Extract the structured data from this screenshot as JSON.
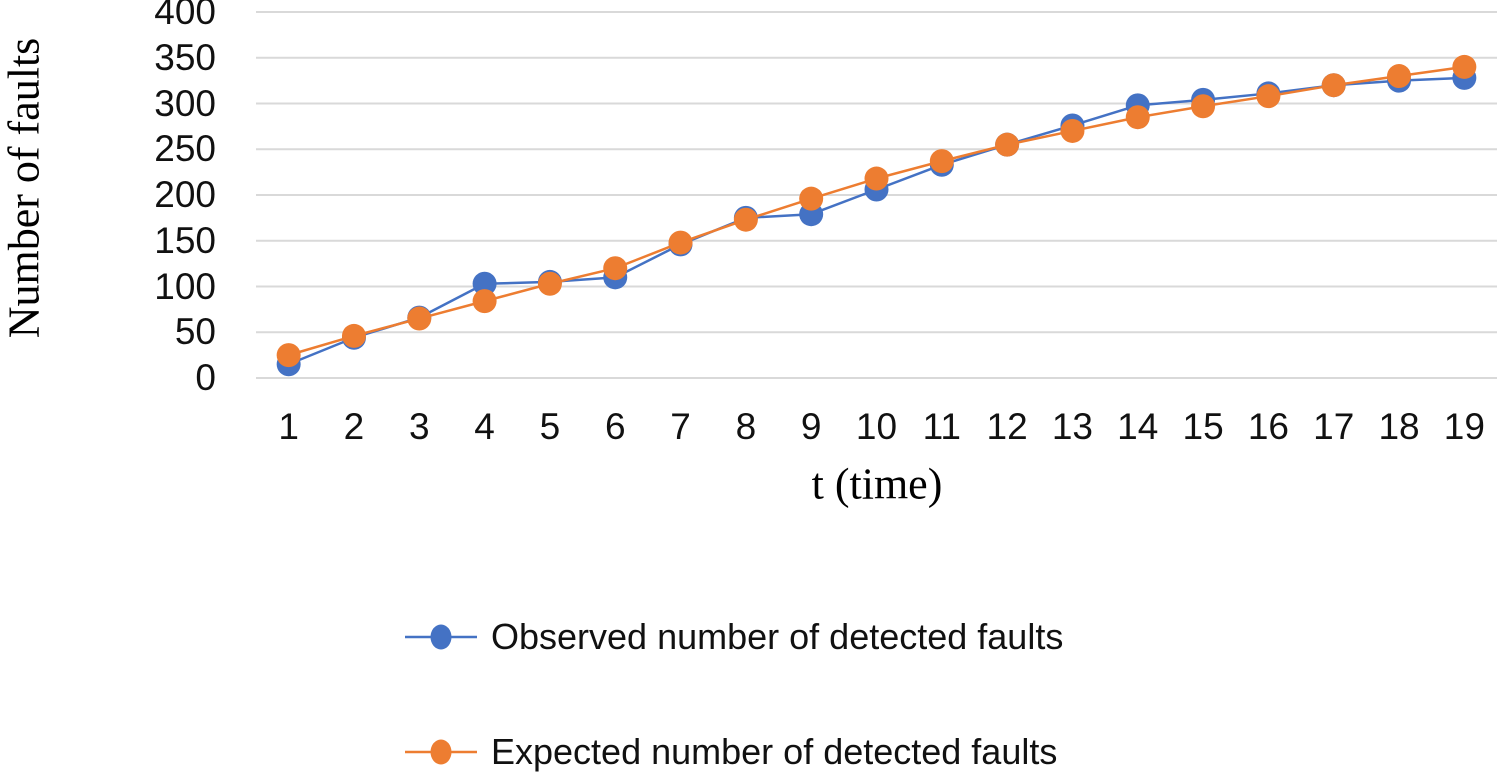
{
  "chart_data": {
    "type": "line",
    "x": [
      1,
      2,
      3,
      4,
      5,
      6,
      7,
      8,
      9,
      10,
      11,
      12,
      13,
      14,
      15,
      16,
      17,
      18,
      19
    ],
    "xlabel": "t (time)",
    "ylabel": "Number of faults",
    "ylim": [
      0,
      400
    ],
    "yticks": [
      0,
      50,
      100,
      150,
      200,
      250,
      300,
      350,
      400
    ],
    "grid": "horizontal",
    "gridline_color": "#D9D9D9",
    "background_color": "#FFFFFF",
    "tick_label_color": "#111111",
    "legend_position": "bottom-left",
    "marker_style": "circle",
    "series": [
      {
        "name": "Observed number of detected faults",
        "color": "#4472C4",
        "values": [
          15,
          44,
          66,
          103,
          105,
          110,
          146,
          175,
          179,
          206,
          233,
          255,
          276,
          298,
          304,
          311,
          320,
          325,
          328
        ]
      },
      {
        "name": "Expected number of detected faults",
        "color": "#ED7D31",
        "values": [
          25,
          46,
          65,
          84,
          103,
          120,
          148,
          173,
          196,
          218,
          237,
          255,
          270,
          285,
          297,
          308,
          320,
          330,
          340
        ]
      }
    ]
  }
}
